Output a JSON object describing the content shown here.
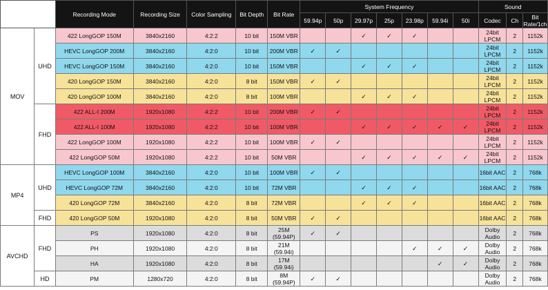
{
  "columns": {
    "recording_mode": "Recording Mode",
    "recording_size": "Recording Size",
    "color_sampling": "Color Sampling",
    "bit_depth": "Bit Depth",
    "bit_rate": "Bit Rate",
    "system_frequency": "System Frequency",
    "frequencies": [
      "59.94p",
      "50p",
      "29.97p",
      "25p",
      "23.98p",
      "59.94i",
      "50i"
    ],
    "sound": "Sound",
    "codec": "Codec",
    "ch": "Ch",
    "sound_bitrate": "Bit Rate/1ch"
  },
  "check_mark": "✓",
  "groups": [
    {
      "label": "MOV",
      "subgroups": [
        {
          "label": "UHD",
          "rows": [
            {
              "mode": "422 LongGOP 150M",
              "size": "3840x2160",
              "sampling": "4:2:2",
              "depth": "10 bit",
              "rate": "150M VBR",
              "freq": [
                0,
                0,
                1,
                1,
                1,
                0,
                0
              ],
              "codec": "24bit LPCM",
              "ch": "2",
              "sbr": "1152k",
              "color": "pink"
            },
            {
              "mode": "HEVC LongGOP 200M",
              "size": "3840x2160",
              "sampling": "4:2:0",
              "depth": "10 bit",
              "rate": "200M VBR",
              "freq": [
                1,
                1,
                0,
                0,
                0,
                0,
                0
              ],
              "codec": "24bit LPCM",
              "ch": "2",
              "sbr": "1152k",
              "color": "blue"
            },
            {
              "mode": "HEVC LongGOP 150M",
              "size": "3840x2160",
              "sampling": "4:2:0",
              "depth": "10 bit",
              "rate": "150M VBR",
              "freq": [
                0,
                0,
                1,
                1,
                1,
                0,
                0
              ],
              "codec": "24bit LPCM",
              "ch": "2",
              "sbr": "1152k",
              "color": "blue"
            },
            {
              "mode": "420 LongGOP 150M",
              "size": "3840x2160",
              "sampling": "4:2:0",
              "depth": "8 bit",
              "rate": "150M VBR",
              "freq": [
                1,
                1,
                0,
                0,
                0,
                0,
                0
              ],
              "codec": "24bit LPCM",
              "ch": "2",
              "sbr": "1152k",
              "color": "yellow"
            },
            {
              "mode": "420 LongGOP 100M",
              "size": "3840x2160",
              "sampling": "4:2:0",
              "depth": "8 bit",
              "rate": "100M VBR",
              "freq": [
                0,
                0,
                1,
                1,
                1,
                0,
                0
              ],
              "codec": "24bit LPCM",
              "ch": "2",
              "sbr": "1152k",
              "color": "yellow"
            }
          ]
        },
        {
          "label": "FHD",
          "rows": [
            {
              "mode": "422 ALL-I 200M",
              "size": "1920x1080",
              "sampling": "4:2:2",
              "depth": "10 bit",
              "rate": "200M VBR",
              "freq": [
                1,
                1,
                0,
                0,
                0,
                0,
                0
              ],
              "codec": "24bit LPCM",
              "ch": "2",
              "sbr": "1152k",
              "color": "red"
            },
            {
              "mode": "422 ALL-I 100M",
              "size": "1920x1080",
              "sampling": "4:2:2",
              "depth": "10 bit",
              "rate": "100M VBR",
              "freq": [
                0,
                0,
                1,
                1,
                1,
                1,
                1
              ],
              "codec": "24bit LPCM",
              "ch": "2",
              "sbr": "1152k",
              "color": "red"
            },
            {
              "mode": "422 LongGOP 100M",
              "size": "1920x1080",
              "sampling": "4:2:2",
              "depth": "10 bit",
              "rate": "100M VBR",
              "freq": [
                1,
                1,
                0,
                0,
                0,
                0,
                0
              ],
              "codec": "24bit LPCM",
              "ch": "2",
              "sbr": "1152k",
              "color": "pink"
            },
            {
              "mode": "422 LongGOP 50M",
              "size": "1920x1080",
              "sampling": "4:2:2",
              "depth": "10 bit",
              "rate": "50M VBR",
              "freq": [
                0,
                0,
                1,
                1,
                1,
                1,
                1
              ],
              "codec": "24bit LPCM",
              "ch": "2",
              "sbr": "1152k",
              "color": "pink"
            }
          ]
        }
      ]
    },
    {
      "label": "MP4",
      "subgroups": [
        {
          "label": "UHD",
          "rows": [
            {
              "mode": "HEVC LongGOP 100M",
              "size": "3840x2160",
              "sampling": "4:2:0",
              "depth": "10 bit",
              "rate": "100M VBR",
              "freq": [
                1,
                1,
                0,
                0,
                0,
                0,
                0
              ],
              "codec": "16bit AAC",
              "ch": "2",
              "sbr": "768k",
              "color": "blue"
            },
            {
              "mode": "HEVC LongGOP 72M",
              "size": "3840x2160",
              "sampling": "4:2:0",
              "depth": "10 bit",
              "rate": "72M VBR",
              "freq": [
                0,
                0,
                1,
                1,
                1,
                0,
                0
              ],
              "codec": "16bit AAC",
              "ch": "2",
              "sbr": "768k",
              "color": "blue"
            },
            {
              "mode": "420 LongGOP 72M",
              "size": "3840x2160",
              "sampling": "4:2:0",
              "depth": "8 bit",
              "rate": "72M VBR",
              "freq": [
                0,
                0,
                1,
                1,
                1,
                0,
                0
              ],
              "codec": "16bit AAC",
              "ch": "2",
              "sbr": "768k",
              "color": "yellow"
            }
          ]
        },
        {
          "label": "FHD",
          "rows": [
            {
              "mode": "420 LongGOP 50M",
              "size": "1920x1080",
              "sampling": "4:2:0",
              "depth": "8 bit",
              "rate": "50M VBR",
              "freq": [
                1,
                1,
                0,
                0,
                0,
                0,
                0
              ],
              "codec": "16bit AAC",
              "ch": "2",
              "sbr": "768k",
              "color": "yellow"
            }
          ]
        }
      ]
    },
    {
      "label": "AVCHD",
      "subgroups": [
        {
          "label": "FHD",
          "rows": [
            {
              "mode": "PS",
              "size": "1920x1080",
              "sampling": "4:2:0",
              "depth": "8 bit",
              "rate": "25M (59.94P)",
              "freq": [
                1,
                1,
                0,
                0,
                0,
                0,
                0
              ],
              "codec": "Dolby Audio",
              "ch": "2",
              "sbr": "768k",
              "color": "grey"
            },
            {
              "mode": "PH",
              "size": "1920x1080",
              "sampling": "4:2:0",
              "depth": "8 bit",
              "rate": "21M (59.94i)",
              "freq": [
                0,
                0,
                0,
                0,
                1,
                1,
                1
              ],
              "codec": "Dolby Audio",
              "ch": "2",
              "sbr": "768k",
              "color": "white"
            },
            {
              "mode": "HA",
              "size": "1920x1080",
              "sampling": "4:2:0",
              "depth": "8 bit",
              "rate": "17M (59.94i)",
              "freq": [
                0,
                0,
                0,
                0,
                0,
                1,
                1
              ],
              "codec": "Dolby Audio",
              "ch": "2",
              "sbr": "768k",
              "color": "grey"
            }
          ]
        },
        {
          "label": "HD",
          "rows": [
            {
              "mode": "PM",
              "size": "1280x720",
              "sampling": "4:2:0",
              "depth": "8 bit",
              "rate": "8M (59.94P)",
              "freq": [
                1,
                1,
                0,
                0,
                0,
                0,
                0
              ],
              "codec": "Dolby Audio",
              "ch": "2",
              "sbr": "768k",
              "color": "white"
            }
          ]
        }
      ]
    }
  ]
}
